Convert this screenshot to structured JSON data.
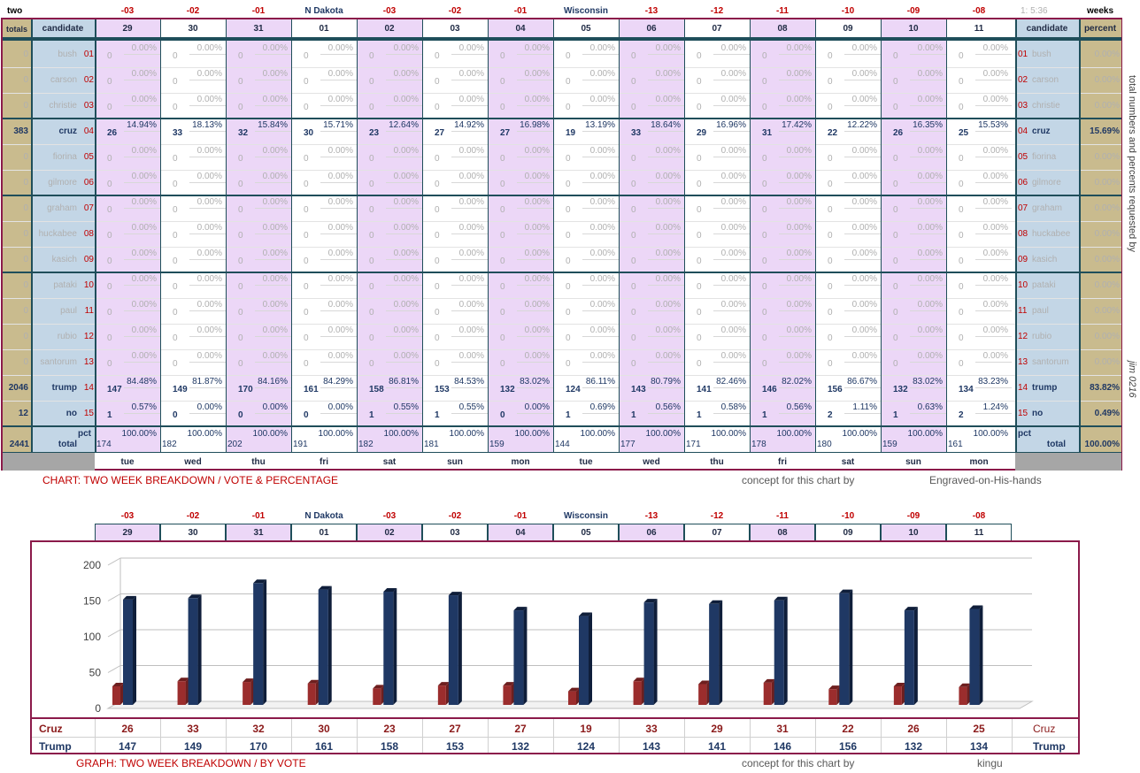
{
  "top_header": {
    "left": "two",
    "states": [
      "-03",
      "-02",
      "-01",
      "N Dakota",
      "-03",
      "-02",
      "-01",
      "Wisconsin",
      "-13",
      "-12",
      "-11",
      "-10",
      "-09",
      "-08"
    ],
    "time": "1: 5:36",
    "right": "weeks"
  },
  "col_header": {
    "totals": "totals",
    "candidate": "candidate",
    "dates": [
      "29",
      "30",
      "31",
      "01",
      "02",
      "03",
      "04",
      "05",
      "06",
      "07",
      "08",
      "09",
      "10",
      "11"
    ],
    "candidate_r": "candidate",
    "percent": "percent"
  },
  "days": [
    "tue",
    "wed",
    "thu",
    "fri",
    "sat",
    "sun",
    "mon",
    "tue",
    "wed",
    "thu",
    "fri",
    "sat",
    "sun",
    "mon"
  ],
  "candidates": [
    {
      "name": "bush",
      "num": "01",
      "total": "0",
      "pct": "0.00%"
    },
    {
      "name": "carson",
      "num": "02",
      "total": "0",
      "pct": "0.00%"
    },
    {
      "name": "christie",
      "num": "03",
      "total": "0",
      "pct": "0.00%"
    },
    {
      "name": "cruz",
      "num": "04",
      "total": "383",
      "pct": "15.69%",
      "v": [
        "26",
        "33",
        "32",
        "30",
        "23",
        "27",
        "27",
        "19",
        "33",
        "29",
        "31",
        "22",
        "26",
        "25"
      ],
      "p": [
        "14.94%",
        "18.13%",
        "15.84%",
        "15.71%",
        "12.64%",
        "14.92%",
        "16.98%",
        "13.19%",
        "18.64%",
        "16.96%",
        "17.42%",
        "12.22%",
        "16.35%",
        "15.53%"
      ]
    },
    {
      "name": "fiorina",
      "num": "05",
      "total": "0",
      "pct": "0.00%"
    },
    {
      "name": "gilmore",
      "num": "06",
      "total": "0",
      "pct": "0.00%"
    },
    {
      "name": "graham",
      "num": "07",
      "total": "0",
      "pct": "0.00%"
    },
    {
      "name": "huckabee",
      "num": "08",
      "total": "0",
      "pct": "0.00%"
    },
    {
      "name": "kasich",
      "num": "09",
      "total": "0",
      "pct": "0.00%"
    },
    {
      "name": "pataki",
      "num": "10",
      "total": "0",
      "pct": "0.00%"
    },
    {
      "name": "paul",
      "num": "11",
      "total": "0",
      "pct": "0.00%"
    },
    {
      "name": "rubio",
      "num": "12",
      "total": "0",
      "pct": "0.00%"
    },
    {
      "name": "santorum",
      "num": "13",
      "total": "0",
      "pct": "0.00%"
    },
    {
      "name": "trump",
      "num": "14",
      "total": "2046",
      "pct": "83.82%",
      "v": [
        "147",
        "149",
        "170",
        "161",
        "158",
        "153",
        "132",
        "124",
        "143",
        "141",
        "146",
        "156",
        "132",
        "134"
      ],
      "p": [
        "84.48%",
        "81.87%",
        "84.16%",
        "84.29%",
        "86.81%",
        "84.53%",
        "83.02%",
        "86.11%",
        "80.79%",
        "82.46%",
        "82.02%",
        "86.67%",
        "83.02%",
        "83.23%"
      ]
    },
    {
      "name": "no",
      "num": "15",
      "total": "12",
      "pct": "0.49%",
      "v": [
        "1",
        "0",
        "0",
        "0",
        "1",
        "1",
        "0",
        "1",
        "1",
        "1",
        "1",
        "2",
        "1",
        "2"
      ],
      "p": [
        "0.57%",
        "0.00%",
        "0.00%",
        "0.00%",
        "0.55%",
        "0.55%",
        "0.00%",
        "0.69%",
        "0.56%",
        "0.58%",
        "0.56%",
        "1.11%",
        "0.63%",
        "1.24%"
      ]
    }
  ],
  "zero_value": "0",
  "zero_pct": "0.00%",
  "total_row": {
    "label": "total",
    "pct_label": "pct",
    "total": "2441",
    "pct": "100.00%",
    "v": [
      "174",
      "182",
      "202",
      "191",
      "182",
      "181",
      "159",
      "144",
      "177",
      "171",
      "178",
      "180",
      "159",
      "161"
    ],
    "p": "100.00%"
  },
  "side_text": "total numbers and percents requested by",
  "side_text2": "jim 0216",
  "notes": {
    "chart_caption": "CHART: TWO WEEK BREAKDOWN / VOTE & PERCENTAGE",
    "concept1": "concept for this chart by",
    "author1": "Engraved-on-His-hands",
    "graph_caption": "GRAPH: TWO WEEK BREAKDOWN / BY VOTE",
    "concept2": "concept for this chart by",
    "author2": "kingu"
  },
  "chart_data": {
    "type": "bar",
    "categories": [
      "29",
      "30",
      "31",
      "01",
      "02",
      "03",
      "04",
      "05",
      "06",
      "07",
      "08",
      "09",
      "10",
      "11"
    ],
    "series": [
      {
        "name": "Cruz",
        "values": [
          26,
          33,
          32,
          30,
          23,
          27,
          27,
          19,
          33,
          29,
          31,
          22,
          26,
          25
        ]
      },
      {
        "name": "Trump",
        "values": [
          147,
          149,
          170,
          161,
          158,
          153,
          132,
          124,
          143,
          141,
          146,
          156,
          132,
          134
        ]
      }
    ],
    "yticks": [
      "0",
      "50",
      "100",
      "150",
      "200"
    ],
    "ylim": [
      0,
      200
    ],
    "grid": true,
    "colors": {
      "Cruz": "#9b2d2d",
      "Trump": "#1f3864"
    }
  }
}
